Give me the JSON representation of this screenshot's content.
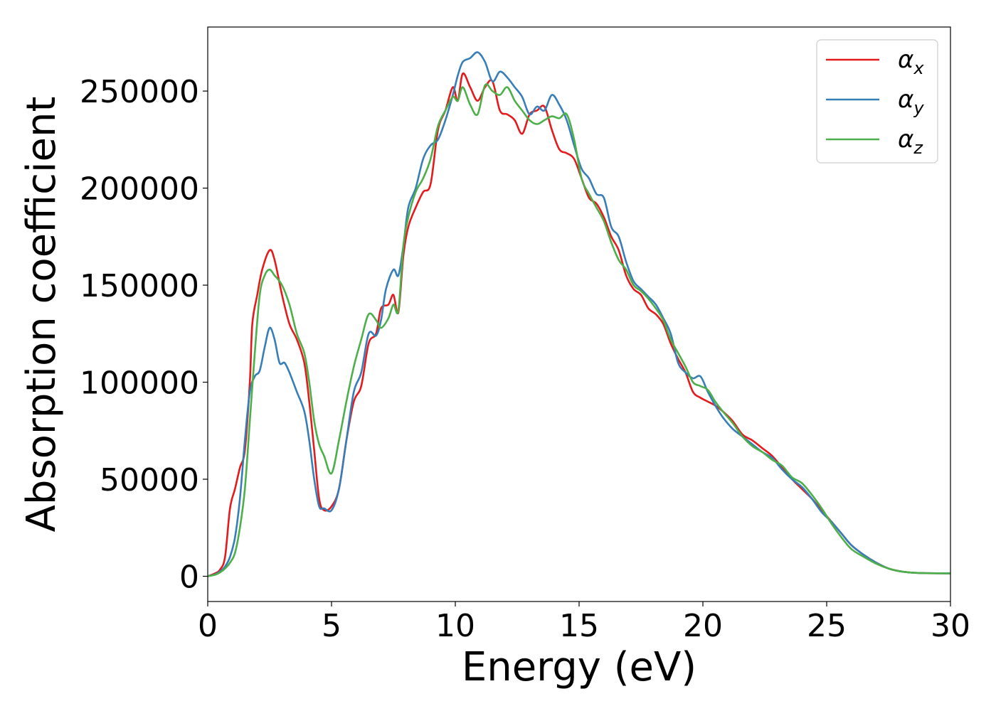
{
  "chart_data": {
    "type": "line",
    "title": "",
    "xlabel": "Energy (eV)",
    "ylabel": "Absorption coefficient",
    "xlim": [
      0,
      30
    ],
    "ylim": [
      -13000,
      283000
    ],
    "xticks": [
      0,
      5,
      10,
      15,
      20,
      25,
      30
    ],
    "xtick_labels": [
      "0",
      "5",
      "10",
      "15",
      "20",
      "25",
      "30"
    ],
    "yticks": [
      0,
      50000,
      100000,
      150000,
      200000,
      250000
    ],
    "ytick_labels": [
      "0",
      "50000",
      "100000",
      "150000",
      "200000",
      "250000"
    ],
    "grid": false,
    "legend_position": "top-right",
    "series": [
      {
        "name": "α",
        "subscript": "x",
        "color": "#e41a1c",
        "points": [
          [
            0,
            0
          ],
          [
            0.3,
            1500
          ],
          [
            0.5,
            3500
          ],
          [
            0.7,
            10000
          ],
          [
            0.9,
            35000
          ],
          [
            1.1,
            45000
          ],
          [
            1.3,
            56000
          ],
          [
            1.5,
            65000
          ],
          [
            1.7,
            100000
          ],
          [
            1.8,
            130000
          ],
          [
            2.0,
            145000
          ],
          [
            2.2,
            158000
          ],
          [
            2.5,
            168000
          ],
          [
            2.7,
            163000
          ],
          [
            3.0,
            145000
          ],
          [
            3.3,
            130000
          ],
          [
            3.6,
            122000
          ],
          [
            3.9,
            110000
          ],
          [
            4.1,
            90000
          ],
          [
            4.3,
            65000
          ],
          [
            4.5,
            40000
          ],
          [
            4.7,
            34000
          ],
          [
            5.0,
            36000
          ],
          [
            5.3,
            45000
          ],
          [
            5.6,
            70000
          ],
          [
            5.9,
            90000
          ],
          [
            6.2,
            98000
          ],
          [
            6.5,
            120000
          ],
          [
            6.8,
            125000
          ],
          [
            7.0,
            138000
          ],
          [
            7.3,
            140000
          ],
          [
            7.5,
            145000
          ],
          [
            7.7,
            136000
          ],
          [
            7.9,
            165000
          ],
          [
            8.1,
            180000
          ],
          [
            8.4,
            190000
          ],
          [
            8.7,
            198000
          ],
          [
            9.0,
            202000
          ],
          [
            9.3,
            230000
          ],
          [
            9.6,
            240000
          ],
          [
            9.9,
            252000
          ],
          [
            10.1,
            245000
          ],
          [
            10.3,
            259000
          ],
          [
            10.6,
            252000
          ],
          [
            10.9,
            245000
          ],
          [
            11.2,
            252000
          ],
          [
            11.5,
            255000
          ],
          [
            11.8,
            240000
          ],
          [
            12.1,
            238000
          ],
          [
            12.4,
            235000
          ],
          [
            12.7,
            228000
          ],
          [
            13.0,
            238000
          ],
          [
            13.3,
            240000
          ],
          [
            13.6,
            242000
          ],
          [
            13.9,
            230000
          ],
          [
            14.2,
            220000
          ],
          [
            14.5,
            218000
          ],
          [
            14.8,
            215000
          ],
          [
            15.1,
            205000
          ],
          [
            15.4,
            195000
          ],
          [
            15.7,
            192000
          ],
          [
            16.0,
            185000
          ],
          [
            16.3,
            175000
          ],
          [
            16.6,
            168000
          ],
          [
            16.9,
            155000
          ],
          [
            17.2,
            148000
          ],
          [
            17.5,
            145000
          ],
          [
            17.8,
            138000
          ],
          [
            18.1,
            135000
          ],
          [
            18.4,
            130000
          ],
          [
            18.7,
            120000
          ],
          [
            19.0,
            112000
          ],
          [
            19.3,
            105000
          ],
          [
            19.6,
            95000
          ],
          [
            19.9,
            92000
          ],
          [
            20.2,
            90000
          ],
          [
            20.5,
            88000
          ],
          [
            20.8,
            85000
          ],
          [
            21.2,
            80000
          ],
          [
            21.6,
            73000
          ],
          [
            22.0,
            70000
          ],
          [
            22.4,
            66000
          ],
          [
            22.8,
            62000
          ],
          [
            23.2,
            56000
          ],
          [
            23.6,
            50000
          ],
          [
            24.0,
            45000
          ],
          [
            24.4,
            40000
          ],
          [
            24.8,
            34000
          ],
          [
            25.2,
            28000
          ],
          [
            25.6,
            22000
          ],
          [
            26.0,
            16000
          ],
          [
            26.5,
            11000
          ],
          [
            27.0,
            7000
          ],
          [
            27.5,
            4000
          ],
          [
            28.0,
            2500
          ],
          [
            28.5,
            1800
          ],
          [
            29.0,
            1600
          ],
          [
            30.0,
            1500
          ]
        ]
      },
      {
        "name": "α",
        "subscript": "y",
        "color": "#377eb8",
        "points": [
          [
            0,
            0
          ],
          [
            0.3,
            1000
          ],
          [
            0.5,
            2500
          ],
          [
            0.7,
            5000
          ],
          [
            0.9,
            10000
          ],
          [
            1.1,
            20000
          ],
          [
            1.3,
            40000
          ],
          [
            1.5,
            70000
          ],
          [
            1.7,
            95000
          ],
          [
            1.9,
            103000
          ],
          [
            2.1,
            106000
          ],
          [
            2.3,
            118000
          ],
          [
            2.5,
            128000
          ],
          [
            2.7,
            122000
          ],
          [
            2.9,
            110000
          ],
          [
            3.1,
            110000
          ],
          [
            3.3,
            105000
          ],
          [
            3.6,
            95000
          ],
          [
            3.9,
            85000
          ],
          [
            4.1,
            70000
          ],
          [
            4.3,
            50000
          ],
          [
            4.5,
            36000
          ],
          [
            4.7,
            35000
          ],
          [
            5.0,
            34000
          ],
          [
            5.3,
            45000
          ],
          [
            5.6,
            70000
          ],
          [
            5.9,
            95000
          ],
          [
            6.2,
            105000
          ],
          [
            6.5,
            125000
          ],
          [
            6.8,
            124000
          ],
          [
            7.0,
            132000
          ],
          [
            7.2,
            148000
          ],
          [
            7.5,
            158000
          ],
          [
            7.7,
            155000
          ],
          [
            7.9,
            170000
          ],
          [
            8.1,
            190000
          ],
          [
            8.4,
            200000
          ],
          [
            8.7,
            215000
          ],
          [
            9.0,
            222000
          ],
          [
            9.3,
            225000
          ],
          [
            9.6,
            235000
          ],
          [
            9.9,
            248000
          ],
          [
            10.1,
            258000
          ],
          [
            10.3,
            265000
          ],
          [
            10.6,
            267000
          ],
          [
            10.9,
            270000
          ],
          [
            11.2,
            265000
          ],
          [
            11.5,
            255000
          ],
          [
            11.8,
            260000
          ],
          [
            12.1,
            257000
          ],
          [
            12.4,
            252000
          ],
          [
            12.7,
            247000
          ],
          [
            13.0,
            238000
          ],
          [
            13.3,
            242000
          ],
          [
            13.6,
            240000
          ],
          [
            13.9,
            248000
          ],
          [
            14.2,
            243000
          ],
          [
            14.5,
            235000
          ],
          [
            14.8,
            222000
          ],
          [
            15.1,
            210000
          ],
          [
            15.4,
            205000
          ],
          [
            15.7,
            197000
          ],
          [
            16.0,
            195000
          ],
          [
            16.3,
            180000
          ],
          [
            16.6,
            175000
          ],
          [
            16.9,
            162000
          ],
          [
            17.2,
            152000
          ],
          [
            17.5,
            148000
          ],
          [
            17.8,
            144000
          ],
          [
            18.1,
            140000
          ],
          [
            18.4,
            133000
          ],
          [
            18.7,
            125000
          ],
          [
            19.0,
            110000
          ],
          [
            19.3,
            105000
          ],
          [
            19.6,
            102000
          ],
          [
            19.9,
            103000
          ],
          [
            20.2,
            95000
          ],
          [
            20.5,
            88000
          ],
          [
            20.8,
            82000
          ],
          [
            21.2,
            76000
          ],
          [
            21.6,
            72000
          ],
          [
            22.0,
            68000
          ],
          [
            22.4,
            64000
          ],
          [
            22.8,
            61000
          ],
          [
            23.2,
            55000
          ],
          [
            23.6,
            50000
          ],
          [
            24.0,
            46000
          ],
          [
            24.4,
            40000
          ],
          [
            24.8,
            33000
          ],
          [
            25.2,
            28000
          ],
          [
            25.6,
            22000
          ],
          [
            26.0,
            16000
          ],
          [
            26.5,
            11000
          ],
          [
            27.0,
            7000
          ],
          [
            27.5,
            4000
          ],
          [
            28.0,
            2500
          ],
          [
            28.5,
            1800
          ],
          [
            29.0,
            1600
          ],
          [
            30.0,
            1500
          ]
        ]
      },
      {
        "name": "α",
        "subscript": "z",
        "color": "#4daf4a",
        "points": [
          [
            0,
            0
          ],
          [
            0.3,
            800
          ],
          [
            0.5,
            2000
          ],
          [
            0.7,
            4000
          ],
          [
            0.9,
            7000
          ],
          [
            1.1,
            12000
          ],
          [
            1.3,
            25000
          ],
          [
            1.5,
            45000
          ],
          [
            1.7,
            80000
          ],
          [
            1.9,
            115000
          ],
          [
            2.1,
            145000
          ],
          [
            2.3,
            155000
          ],
          [
            2.5,
            158000
          ],
          [
            2.7,
            155000
          ],
          [
            3.0,
            150000
          ],
          [
            3.3,
            140000
          ],
          [
            3.6,
            125000
          ],
          [
            3.9,
            115000
          ],
          [
            4.1,
            100000
          ],
          [
            4.3,
            80000
          ],
          [
            4.5,
            68000
          ],
          [
            4.7,
            62000
          ],
          [
            5.0,
            53000
          ],
          [
            5.3,
            70000
          ],
          [
            5.6,
            90000
          ],
          [
            5.9,
            108000
          ],
          [
            6.2,
            122000
          ],
          [
            6.5,
            135000
          ],
          [
            6.8,
            132000
          ],
          [
            7.0,
            128000
          ],
          [
            7.3,
            133000
          ],
          [
            7.5,
            140000
          ],
          [
            7.7,
            137000
          ],
          [
            7.9,
            170000
          ],
          [
            8.1,
            185000
          ],
          [
            8.4,
            198000
          ],
          [
            8.7,
            205000
          ],
          [
            9.0,
            215000
          ],
          [
            9.3,
            232000
          ],
          [
            9.6,
            240000
          ],
          [
            9.9,
            247000
          ],
          [
            10.1,
            245000
          ],
          [
            10.3,
            252000
          ],
          [
            10.6,
            243000
          ],
          [
            10.9,
            238000
          ],
          [
            11.2,
            253000
          ],
          [
            11.5,
            250000
          ],
          [
            11.8,
            248000
          ],
          [
            12.1,
            252000
          ],
          [
            12.4,
            245000
          ],
          [
            12.7,
            240000
          ],
          [
            13.0,
            235000
          ],
          [
            13.3,
            233000
          ],
          [
            13.6,
            235000
          ],
          [
            13.9,
            237000
          ],
          [
            14.2,
            236000
          ],
          [
            14.5,
            238000
          ],
          [
            14.8,
            225000
          ],
          [
            15.1,
            205000
          ],
          [
            15.4,
            197000
          ],
          [
            15.7,
            190000
          ],
          [
            16.0,
            183000
          ],
          [
            16.3,
            172000
          ],
          [
            16.6,
            163000
          ],
          [
            16.9,
            158000
          ],
          [
            17.2,
            150000
          ],
          [
            17.5,
            147000
          ],
          [
            17.8,
            143000
          ],
          [
            18.1,
            138000
          ],
          [
            18.4,
            132000
          ],
          [
            18.7,
            122000
          ],
          [
            19.0,
            115000
          ],
          [
            19.3,
            108000
          ],
          [
            19.6,
            100000
          ],
          [
            19.9,
            98000
          ],
          [
            20.2,
            96000
          ],
          [
            20.5,
            90000
          ],
          [
            20.8,
            85000
          ],
          [
            21.2,
            79000
          ],
          [
            21.6,
            72000
          ],
          [
            22.0,
            67000
          ],
          [
            22.4,
            64000
          ],
          [
            22.8,
            60000
          ],
          [
            23.2,
            57000
          ],
          [
            23.6,
            51000
          ],
          [
            24.0,
            48000
          ],
          [
            24.4,
            42000
          ],
          [
            24.8,
            35000
          ],
          [
            25.2,
            27000
          ],
          [
            25.6,
            20000
          ],
          [
            26.0,
            14000
          ],
          [
            26.5,
            10000
          ],
          [
            27.0,
            6500
          ],
          [
            27.5,
            4000
          ],
          [
            28.0,
            2500
          ],
          [
            28.5,
            1800
          ],
          [
            29.0,
            1600
          ],
          [
            30.0,
            1500
          ]
        ]
      }
    ]
  }
}
